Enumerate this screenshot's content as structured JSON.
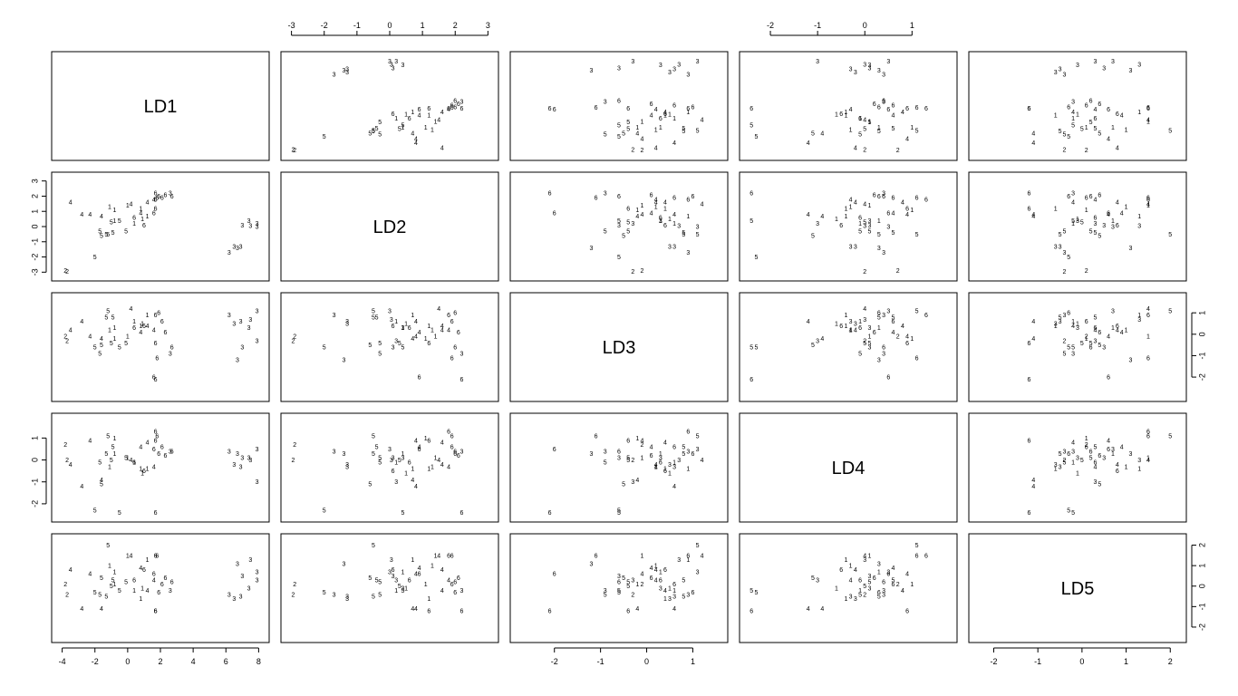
{
  "chart_data": {
    "type": "scatter",
    "kind": "scatterplot-matrix",
    "variables": [
      "LD1",
      "LD2",
      "LD3",
      "LD4",
      "LD5"
    ],
    "axes": {
      "LD1": {
        "ticks": [
          "-4",
          "-2",
          "0",
          "2",
          "4",
          "6",
          "8"
        ],
        "tick_values": [
          -4,
          -2,
          0,
          2,
          4,
          6,
          8
        ],
        "range": [
          -4.2,
          8.2
        ],
        "axis_side": "bottom"
      },
      "LD2": {
        "ticks": [
          "-3",
          "-2",
          "-1",
          "0",
          "1",
          "2",
          "3"
        ],
        "tick_values": [
          -3,
          -2,
          -1,
          0,
          1,
          2,
          3
        ],
        "range": [
          -3.1,
          3.1
        ],
        "axis_side": "left",
        "axis_side_2": "top"
      },
      "LD3": {
        "ticks": [
          "-2",
          "-1",
          "0",
          "1"
        ],
        "tick_values": [
          -2,
          -1,
          0,
          1
        ],
        "range": [
          -2.8,
          1.6
        ],
        "axis_side": "right",
        "axis_side_2": "bottom"
      },
      "LD4": {
        "ticks": [
          "-2",
          "-1",
          "0",
          "1"
        ],
        "tick_values": [
          -2,
          -1,
          0,
          1
        ],
        "range": [
          -2.5,
          1.8
        ],
        "axis_side": "top",
        "axis_side_2": "left"
      },
      "LD5": {
        "ticks": [
          "-2",
          "-1",
          "0",
          "1",
          "2"
        ],
        "tick_values": [
          -2,
          -1,
          0,
          1,
          2
        ],
        "range": [
          -2.4,
          2.2
        ],
        "axis_side": "bottom",
        "axis_side_2": "right"
      }
    },
    "point_labels": [
      "2",
      "2",
      "5",
      "5",
      "5",
      "5",
      "1",
      "1",
      "5",
      "1",
      "4",
      "4",
      "4",
      "3",
      "3",
      "3",
      "3",
      "3",
      "3",
      "3",
      "3",
      "6",
      "6",
      "6",
      "6",
      "6",
      "6",
      "6",
      "6",
      "1",
      "1",
      "1",
      "4",
      "4",
      "4",
      "5",
      "5",
      "1",
      "6",
      "6",
      "3",
      "3",
      "4",
      "5",
      "1",
      "4",
      "5",
      "6"
    ],
    "LD1": [
      -3.8,
      -3.7,
      -2.0,
      -1.2,
      -0.9,
      -1.0,
      0.0,
      0.9,
      -1.7,
      -0.8,
      1.6,
      1.2,
      -2.8,
      7.9,
      7.5,
      6.2,
      6.5,
      7.4,
      7.9,
      6.7,
      7.0,
      1.7,
      1.7,
      2.1,
      2.7,
      1.0,
      1.9,
      1.7,
      2.3,
      0.4,
      -1.1,
      -0.8,
      -2.3,
      -3.5,
      0.2,
      -1.3,
      -0.1,
      1.2,
      1.8,
      0.4,
      2.6,
      6.9,
      -1.6,
      -1.6,
      0.8,
      0.8,
      -0.5,
      1.6
    ],
    "LD2": [
      -2.9,
      -2.95,
      -2.0,
      -0.5,
      -0.4,
      0.3,
      1.4,
      0.5,
      -0.3,
      0.4,
      1.8,
      1.6,
      0.8,
      0.0,
      0.05,
      -1.7,
      -1.3,
      0.4,
      0.2,
      -1.4,
      0.1,
      2.2,
      1.8,
      1.9,
      2.0,
      0.1,
      2.0,
      1.2,
      2.1,
      0.2,
      1.3,
      1.1,
      0.8,
      1.6,
      1.5,
      -0.5,
      -0.3,
      0.7,
      1.9,
      0.6,
      2.2,
      -1.3,
      0.7,
      -0.6,
      1.2,
      0.9,
      0.4,
      0.9
    ],
    "LD3": [
      -0.1,
      -0.3,
      -0.6,
      1.1,
      0.8,
      -0.4,
      -0.1,
      0.5,
      -0.9,
      0.3,
      0.2,
      0.4,
      0.6,
      1.1,
      0.7,
      0.9,
      0.5,
      0.3,
      -0.3,
      -1.2,
      -0.6,
      -2.1,
      0.9,
      0.6,
      -0.6,
      0.4,
      1.0,
      -0.4,
      0.1,
      0.6,
      0.2,
      -0.2,
      -0.1,
      0.2,
      1.2,
      0.8,
      -0.4,
      0.9,
      -1.1,
      0.3,
      -0.9,
      0.6,
      -0.2,
      -0.5,
      0.4,
      0.1,
      -0.6,
      -2.0
    ],
    "LD4": [
      0.7,
      0.0,
      -2.3,
      1.1,
      0.6,
      0.0,
      0.1,
      -0.6,
      -0.1,
      0.3,
      -0.3,
      0.8,
      -1.2,
      0.5,
      0.0,
      0.4,
      -0.2,
      0.1,
      -1.0,
      0.3,
      0.1,
      -2.4,
      1.3,
      0.6,
      0.4,
      -0.5,
      0.3,
      0.9,
      0.2,
      -0.1,
      -0.3,
      1.0,
      0.9,
      -0.2,
      0.0,
      0.3,
      0.1,
      -0.4,
      1.1,
      -0.1,
      0.4,
      -0.3,
      -0.9,
      -1.1,
      -0.4,
      0.6,
      -2.4,
      0.5
    ],
    "LD5": [
      0.1,
      -0.4,
      -0.3,
      2.0,
      0.3,
      0.0,
      1.5,
      -0.1,
      -0.4,
      0.7,
      0.3,
      -0.2,
      -1.1,
      0.7,
      1.3,
      -0.4,
      -0.6,
      -0.1,
      0.3,
      1.1,
      0.5,
      -1.2,
      1.5,
      0.1,
      0.2,
      0.8,
      -0.3,
      -1.2,
      0.4,
      -0.2,
      1.0,
      0.1,
      0.6,
      0.8,
      1.5,
      -0.5,
      0.2,
      1.3,
      1.5,
      0.3,
      -0.2,
      -0.5,
      -1.1,
      0.4,
      -0.6,
      0.9,
      -0.2,
      0.6
    ]
  }
}
